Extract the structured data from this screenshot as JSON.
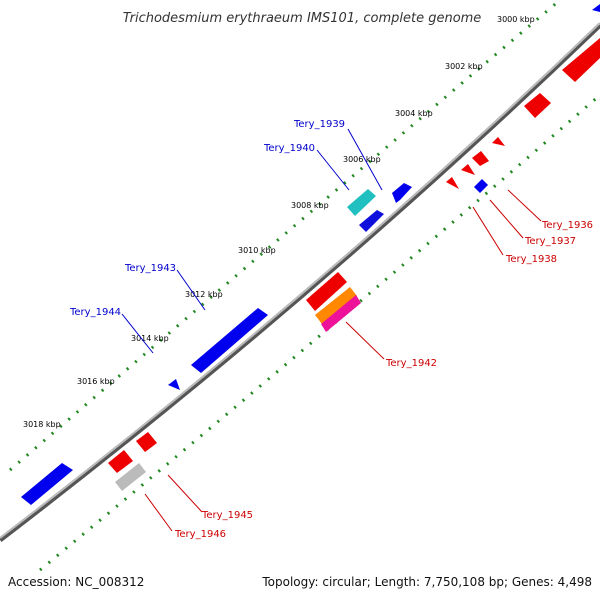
{
  "title": "Trichodesmium erythraeum IMS101, complete genome",
  "footer": {
    "accession": "Accession: NC_008312",
    "summary": "Topology: circular; Length: 7,750,108 bp; Genes: 4,498"
  },
  "ruler": {
    "kbp_labels": [
      "3000 kbp",
      "3002 kbp",
      "3004 kbp",
      "3006 kbp",
      "3008 kbp",
      "3010 kbp",
      "3012 kbp",
      "3014 kbp",
      "3016 kbp",
      "3018 kbp"
    ]
  },
  "colors": {
    "forward_label": "#0000cc",
    "reverse_label": "#cc0000",
    "backbone": "#888888",
    "ticks": "#228822"
  },
  "genes": {
    "forward": [
      "Tery_1939",
      "Tery_1940",
      "Tery_1943",
      "Tery_1944"
    ],
    "reverse": [
      "Tery_1936",
      "Tery_1937",
      "Tery_1938",
      "Tery_1942",
      "Tery_1945",
      "Tery_1946"
    ]
  }
}
